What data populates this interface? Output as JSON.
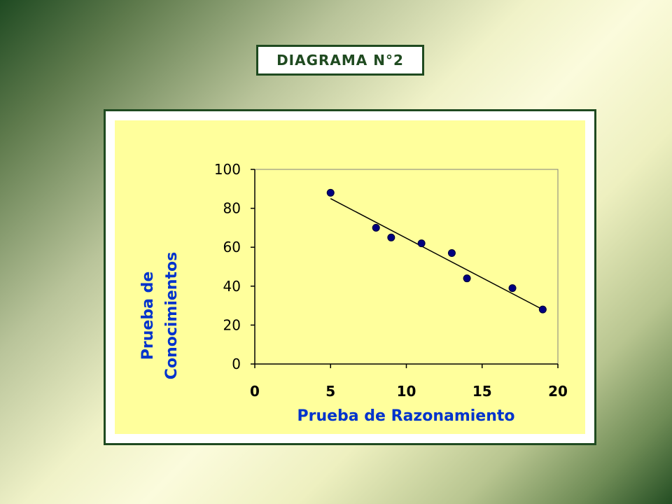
{
  "title": "DIAGRAMA N°2",
  "colors": {
    "frame": "#1f4a20",
    "plot_bg": "#ffff9c",
    "marker": "#000080",
    "axis_label": "#0033cc",
    "trendline": "#000000"
  },
  "chart_data": {
    "type": "scatter",
    "title": "",
    "xlabel": "Prueba de Razonamiento",
    "ylabel_lines": [
      "Prueba de",
      "Conocimientos"
    ],
    "xlim": [
      0,
      20
    ],
    "ylim": [
      0,
      100
    ],
    "xticks": [
      "0",
      "5",
      "10",
      "15",
      "20"
    ],
    "yticks": [
      "0",
      "20",
      "40",
      "60",
      "80",
      "100"
    ],
    "grid": false,
    "legend": "none",
    "points": [
      {
        "x": 5,
        "y": 88
      },
      {
        "x": 8,
        "y": 70
      },
      {
        "x": 9,
        "y": 65
      },
      {
        "x": 11,
        "y": 62
      },
      {
        "x": 13,
        "y": 57
      },
      {
        "x": 14,
        "y": 44
      },
      {
        "x": 17,
        "y": 39
      },
      {
        "x": 19,
        "y": 28
      }
    ],
    "trendline": {
      "x": [
        5,
        19
      ],
      "y": [
        85,
        28
      ]
    }
  }
}
